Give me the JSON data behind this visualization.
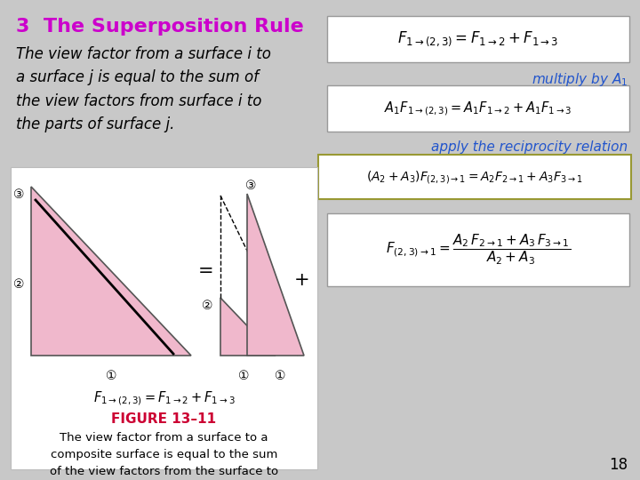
{
  "background_color": "#c8c8c8",
  "title": "3  The Superposition Rule",
  "title_color": "#cc00cc",
  "title_fontsize": 16,
  "body_text": "The view factor from a surface i to\na surface j is equal to the sum of\nthe view factors from surface i to\nthe parts of surface j.",
  "body_fontsize": 12,
  "multiply_text": "multiply by $A_1$",
  "multiply_color": "#2255cc",
  "apply_text": "apply the reciprocity relation",
  "apply_color": "#2255cc",
  "page_number": "18",
  "figure_label": "FIGURE 13–11",
  "figure_label_color": "#cc0033",
  "caption": "The view factor from a surface to a\ncomposite surface is equal to the sum\nof the view factors from the surface to\n   the parts of the composite surface.",
  "pink_fill": "#f0b8cc",
  "triangle_outline": "#555555",
  "eq_box_color": "#e8e8e8",
  "eq_border_color": "#aaaaaa",
  "eq3_border_color": "#999933"
}
